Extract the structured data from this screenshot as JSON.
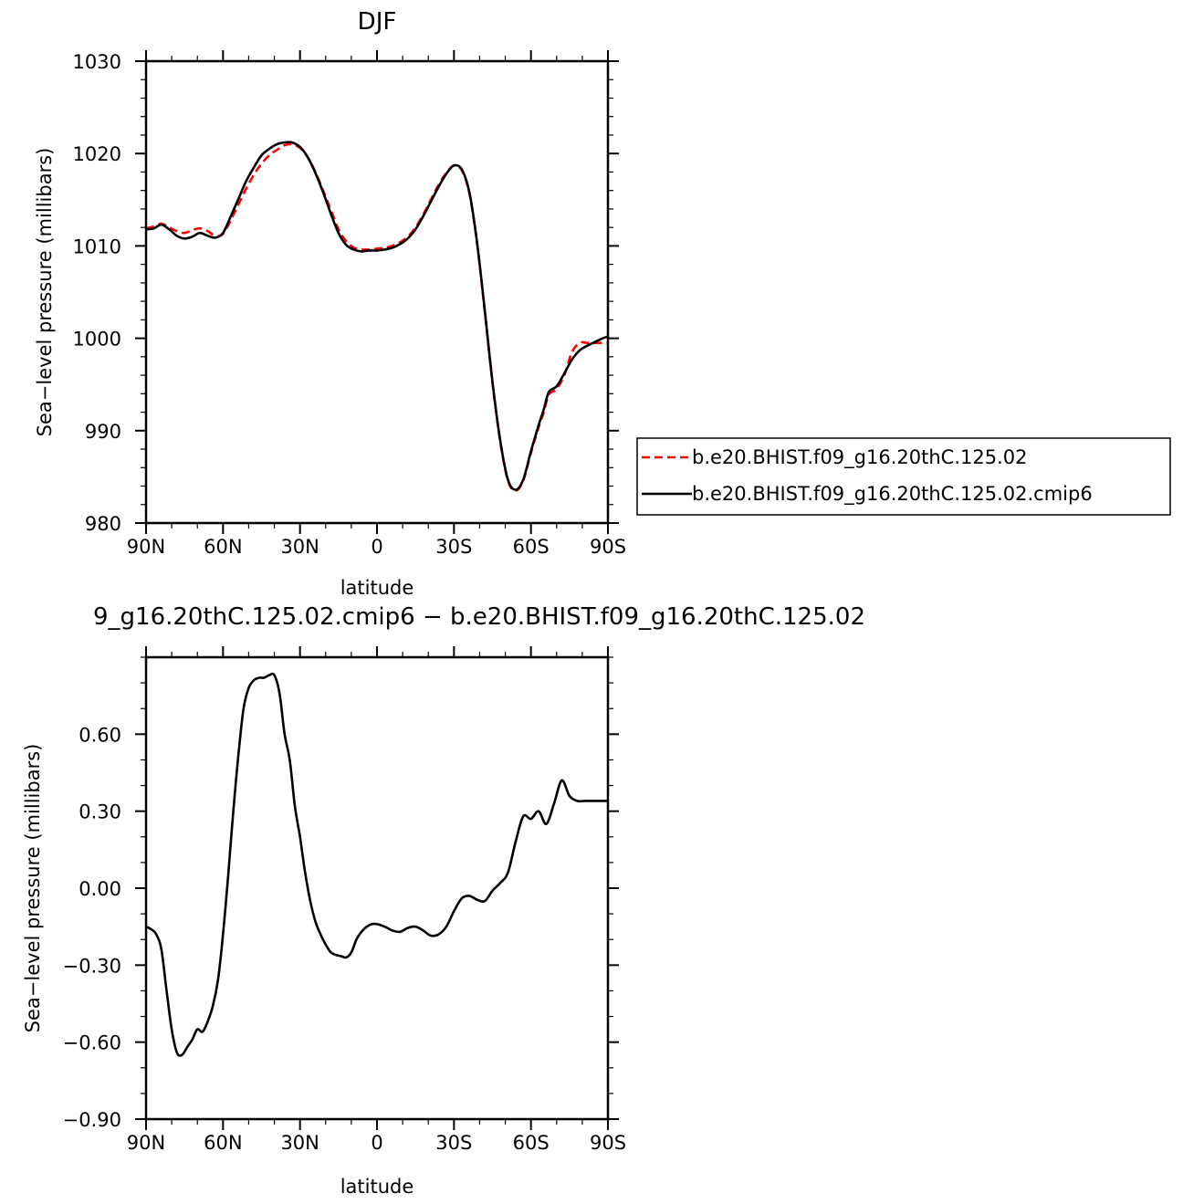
{
  "chart_data": [
    {
      "type": "line",
      "title": "DJF",
      "xlabel": "latitude",
      "ylabel": "Sea−level pressure (millibars)",
      "xlim": [
        90,
        -90
      ],
      "ylim": [
        980,
        1030
      ],
      "xticks": [
        {
          "value": 90,
          "label": "90N"
        },
        {
          "value": 60,
          "label": "60N"
        },
        {
          "value": 30,
          "label": "30N"
        },
        {
          "value": 0,
          "label": "0"
        },
        {
          "value": -30,
          "label": "30S"
        },
        {
          "value": -60,
          "label": "60S"
        },
        {
          "value": -90,
          "label": "90S"
        }
      ],
      "yticks": [
        {
          "value": 980,
          "label": "980"
        },
        {
          "value": 990,
          "label": "990"
        },
        {
          "value": 1000,
          "label": "1000"
        },
        {
          "value": 1010,
          "label": "1010"
        },
        {
          "value": 1020,
          "label": "1020"
        },
        {
          "value": 1030,
          "label": "1030"
        }
      ],
      "legend_position": "right",
      "series": [
        {
          "name": "b.e20.BHIST.f09_g16.20thC.125.02",
          "color": "#ff0000",
          "dash": "dashed",
          "x": [
            90,
            87,
            84,
            81,
            78,
            75,
            72,
            69,
            66,
            63,
            60,
            57,
            54,
            51,
            48,
            45,
            42,
            39,
            36,
            33,
            30,
            27,
            24,
            21,
            18,
            15,
            12,
            9,
            6,
            3,
            0,
            -3,
            -6,
            -9,
            -12,
            -15,
            -18,
            -21,
            -24,
            -27,
            -30,
            -33,
            -36,
            -39,
            -42,
            -45,
            -48,
            -51,
            -54,
            -57,
            -60,
            -63,
            -65,
            -67,
            -70,
            -73,
            -76,
            -79,
            -82,
            -85,
            -88,
            -90
          ],
          "y": [
            1011.9,
            1012.1,
            1012.4,
            1012.0,
            1011.6,
            1011.4,
            1011.7,
            1011.9,
            1011.6,
            1011.1,
            1011.3,
            1012.8,
            1014.5,
            1016.2,
            1017.7,
            1018.9,
            1019.8,
            1020.4,
            1020.9,
            1021.0,
            1020.6,
            1019.6,
            1018.0,
            1016.0,
            1013.9,
            1011.8,
            1010.5,
            1009.8,
            1009.6,
            1009.6,
            1009.7,
            1009.8,
            1010.0,
            1010.4,
            1011.0,
            1012.0,
            1013.4,
            1015.0,
            1016.6,
            1017.9,
            1018.7,
            1018.2,
            1015.7,
            1010.3,
            1002.9,
            995.2,
            988.9,
            984.6,
            983.5,
            984.6,
            987.6,
            990.4,
            992.0,
            993.9,
            994.5,
            996.0,
            998.5,
            999.5,
            999.5,
            999.5,
            999.5,
            999.5
          ]
        },
        {
          "name": "b.e20.BHIST.f09_g16.20thC.125.02.cmip6",
          "color": "#000000",
          "dash": "solid",
          "x": [
            90,
            87,
            84,
            81,
            78,
            75,
            72,
            69,
            66,
            63,
            60,
            57,
            54,
            51,
            48,
            45,
            42,
            39,
            36,
            33,
            30,
            27,
            24,
            21,
            18,
            15,
            12,
            9,
            6,
            3,
            0,
            -3,
            -6,
            -9,
            -12,
            -15,
            -18,
            -21,
            -24,
            -27,
            -30,
            -33,
            -36,
            -39,
            -42,
            -45,
            -48,
            -51,
            -54,
            -57,
            -60,
            -63,
            -65,
            -67,
            -70,
            -73,
            -76,
            -79,
            -82,
            -85,
            -88,
            -90
          ],
          "y": [
            1011.8,
            1011.9,
            1012.3,
            1011.8,
            1011.1,
            1010.8,
            1011.0,
            1011.4,
            1011.1,
            1010.9,
            1011.4,
            1013.2,
            1015.1,
            1017.0,
            1018.5,
            1019.8,
            1020.5,
            1021.0,
            1021.2,
            1021.2,
            1020.7,
            1019.6,
            1017.9,
            1015.8,
            1013.5,
            1011.4,
            1010.1,
            1009.6,
            1009.4,
            1009.5,
            1009.5,
            1009.6,
            1009.8,
            1010.2,
            1010.8,
            1011.8,
            1013.2,
            1014.8,
            1016.4,
            1017.8,
            1018.7,
            1018.3,
            1015.8,
            1010.4,
            1003.0,
            995.3,
            989.0,
            984.7,
            983.6,
            984.7,
            987.8,
            990.6,
            992.3,
            994.2,
            994.8,
            996.2,
            997.7,
            998.7,
            999.2,
            999.6,
            1000.0,
            1000.2
          ]
        }
      ]
    },
    {
      "type": "line",
      "title": "9_g16.20thC.125.02.cmip6 − b.e20.BHIST.f09_g16.20thC.125.02",
      "xlabel": "latitude",
      "ylabel": "Sea−level pressure (millibars)",
      "xlim": [
        90,
        -90
      ],
      "ylim": [
        -0.9,
        0.9
      ],
      "xticks": [
        {
          "value": 90,
          "label": "90N"
        },
        {
          "value": 60,
          "label": "60N"
        },
        {
          "value": 30,
          "label": "30N"
        },
        {
          "value": 0,
          "label": "0"
        },
        {
          "value": -30,
          "label": "30S"
        },
        {
          "value": -60,
          "label": "60S"
        },
        {
          "value": -90,
          "label": "90S"
        }
      ],
      "yticks": [
        {
          "value": -0.9,
          "label": "−0.90"
        },
        {
          "value": -0.6,
          "label": "−0.60"
        },
        {
          "value": -0.3,
          "label": "−0.30"
        },
        {
          "value": 0.0,
          "label": "0.00"
        },
        {
          "value": 0.3,
          "label": "0.30"
        },
        {
          "value": 0.6,
          "label": "0.60"
        }
      ],
      "series": [
        {
          "color": "#000000",
          "dash": "solid",
          "x": [
            90,
            88,
            86,
            84,
            82,
            80,
            78,
            76,
            74,
            72,
            70,
            68,
            66,
            64,
            62,
            60,
            58,
            56,
            54,
            52,
            50,
            48,
            46,
            44,
            42,
            40,
            38,
            36,
            34,
            32,
            30,
            28,
            26,
            24,
            22,
            20,
            18,
            16,
            14,
            12,
            10,
            8,
            6,
            4,
            2,
            0,
            -3,
            -6,
            -9,
            -12,
            -15,
            -18,
            -21,
            -24,
            -27,
            -30,
            -33,
            -36,
            -39,
            -42,
            -45,
            -48,
            -51,
            -54,
            -57,
            -60,
            -63,
            -66,
            -69,
            -72,
            -75,
            -78,
            -81,
            -84,
            -87,
            -89,
            -90
          ],
          "y": [
            -0.15,
            -0.16,
            -0.18,
            -0.24,
            -0.4,
            -0.55,
            -0.64,
            -0.65,
            -0.62,
            -0.59,
            -0.55,
            -0.56,
            -0.52,
            -0.46,
            -0.36,
            -0.18,
            0.05,
            0.3,
            0.52,
            0.7,
            0.78,
            0.81,
            0.82,
            0.82,
            0.83,
            0.83,
            0.76,
            0.6,
            0.5,
            0.32,
            0.2,
            0.06,
            -0.05,
            -0.13,
            -0.18,
            -0.22,
            -0.25,
            -0.26,
            -0.265,
            -0.27,
            -0.25,
            -0.2,
            -0.17,
            -0.15,
            -0.14,
            -0.14,
            -0.15,
            -0.165,
            -0.17,
            -0.155,
            -0.15,
            -0.165,
            -0.185,
            -0.18,
            -0.15,
            -0.09,
            -0.04,
            -0.03,
            -0.045,
            -0.05,
            -0.01,
            0.02,
            0.06,
            0.18,
            0.28,
            0.27,
            0.3,
            0.25,
            0.33,
            0.42,
            0.36,
            0.34,
            0.34,
            0.34,
            0.34,
            0.34,
            0.34
          ]
        }
      ]
    }
  ]
}
